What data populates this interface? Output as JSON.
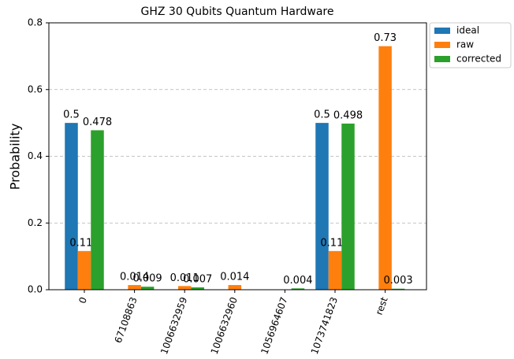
{
  "chart_data": {
    "type": "bar",
    "title": "GHZ 30 Qubits Quantum Hardware",
    "ylabel": "Probability",
    "categories": [
      "0",
      "67108863",
      "1006632959",
      "1006632960",
      "1056964607",
      "1073741823",
      "rest"
    ],
    "series": [
      {
        "name": "ideal",
        "color": "#1f77b4",
        "values": [
          0.5,
          null,
          null,
          null,
          null,
          0.5,
          null
        ]
      },
      {
        "name": "raw",
        "color": "#ff7f0e",
        "values": [
          0.116,
          0.014,
          0.011,
          0.014,
          null,
          0.116,
          0.73
        ]
      },
      {
        "name": "corrected",
        "color": "#2ca02c",
        "values": [
          0.478,
          0.009,
          0.007,
          null,
          0.004,
          0.498,
          0.003
        ]
      }
    ],
    "ylim": [
      0,
      0.8
    ],
    "yticks": [
      {
        "value": 0,
        "label": "0.0"
      },
      0.2,
      0.4,
      0.6,
      0.8
    ],
    "grid": true,
    "legend": "outside upper right"
  }
}
